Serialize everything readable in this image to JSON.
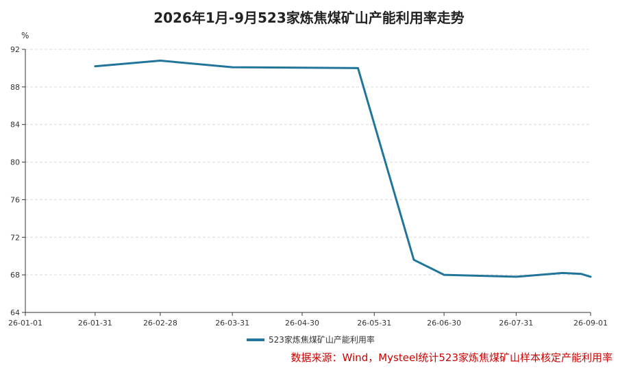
{
  "chart_data": {
    "type": "line",
    "title": "2026年1月-9月523家炼焦煤矿山产能利用率走势",
    "ylabel": "%",
    "xlabel": "",
    "ylim": [
      64,
      92
    ],
    "yticks": [
      64,
      68,
      72,
      76,
      80,
      84,
      88,
      92
    ],
    "xlim": [
      "2026-01-01",
      "2026-09-01"
    ],
    "xticks": [
      {
        "date": "2026-01-01",
        "label": "26-01-01"
      },
      {
        "date": "2026-01-31",
        "label": "26-01-31"
      },
      {
        "date": "2026-02-28",
        "label": "26-02-28"
      },
      {
        "date": "2026-03-31",
        "label": "26-03-31"
      },
      {
        "date": "2026-04-30",
        "label": "26-04-30"
      },
      {
        "date": "2026-05-31",
        "label": "26-05-31"
      },
      {
        "date": "2026-06-30",
        "label": "26-06-30"
      },
      {
        "date": "2026-07-31",
        "label": "26-07-31"
      },
      {
        "date": "2026-09-01",
        "label": "26-09-01"
      }
    ],
    "grid": true,
    "legend_position": "bottom",
    "series": [
      {
        "name": "523家炼焦煤矿山产能利用率",
        "color": "#21759b",
        "points": [
          {
            "x": "2026-01-31",
            "y": 90.2
          },
          {
            "x": "2026-02-28",
            "y": 90.8
          },
          {
            "x": "2026-03-31",
            "y": 90.1
          },
          {
            "x": "2026-05-24",
            "y": 90.0
          },
          {
            "x": "2026-06-17",
            "y": 69.6
          },
          {
            "x": "2026-06-30",
            "y": 68.0
          },
          {
            "x": "2026-07-31",
            "y": 67.8
          },
          {
            "x": "2026-08-20",
            "y": 68.2
          },
          {
            "x": "2026-08-28",
            "y": 68.1
          },
          {
            "x": "2026-09-01",
            "y": 67.8
          }
        ]
      }
    ]
  },
  "source_note": "数据来源：Wind，Mysteel统计523家炼焦煤矿山样本核定产能利用率"
}
